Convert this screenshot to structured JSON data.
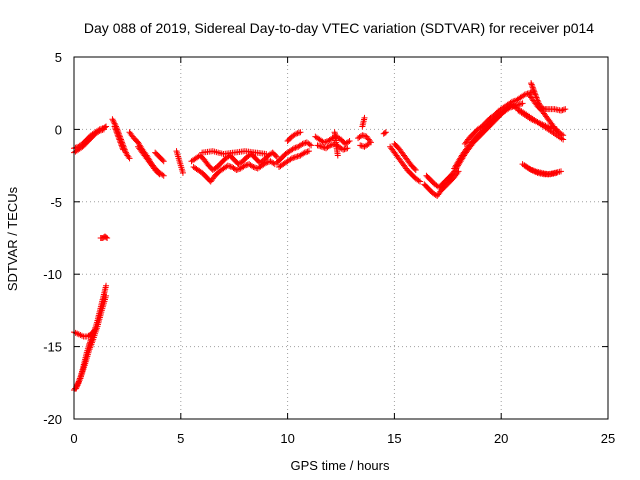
{
  "chart_data": {
    "type": "scatter",
    "title": "Day 088 of 2019, Sidereal Day-to-day VTEC variation (SDTVAR) for receiver p014",
    "xlabel": "GPS time / hours",
    "ylabel": "SDTVAR / TECUs",
    "xlim": [
      0,
      25
    ],
    "ylim": [
      -20,
      5
    ],
    "xticks": [
      "0",
      "5",
      "10",
      "15",
      "20",
      "25"
    ],
    "yticks": [
      "5",
      "0",
      "-5",
      "-10",
      "-15",
      "-20"
    ],
    "marker": "+",
    "grid": true,
    "series": [
      {
        "name": "SDTVAR",
        "color": "#ff0000",
        "segments": [
          {
            "x": [
              0.0,
              0.2,
              0.4,
              0.6,
              0.8,
              1.0,
              1.2,
              1.4,
              1.5
            ],
            "y": [
              -1.3,
              -1.2,
              -1.0,
              -0.7,
              -0.4,
              -0.2,
              0.0,
              0.1,
              0.2
            ]
          },
          {
            "x": [
              0.0,
              0.2,
              0.4,
              0.6,
              0.8,
              1.0,
              1.2,
              1.4
            ],
            "y": [
              -1.6,
              -1.4,
              -1.2,
              -0.9,
              -0.6,
              -0.3,
              -0.1,
              0.0
            ]
          },
          {
            "x": [
              0.0,
              0.1,
              0.2,
              0.3,
              0.4,
              0.5,
              0.6,
              0.7,
              0.8,
              0.9,
              1.0,
              1.1,
              1.2,
              1.3,
              1.4,
              1.5
            ],
            "y": [
              -18.0,
              -17.8,
              -17.5,
              -17.1,
              -16.6,
              -16.0,
              -15.4,
              -14.9,
              -14.5,
              -14.1,
              -13.7,
              -13.2,
              -12.6,
              -12.0,
              -11.4,
              -10.8
            ]
          },
          {
            "x": [
              0.1,
              0.3,
              0.5,
              0.7,
              0.9,
              1.1,
              1.3,
              1.5
            ],
            "y": [
              -17.9,
              -17.2,
              -16.3,
              -15.3,
              -14.5,
              -13.6,
              -12.5,
              -11.5
            ]
          },
          {
            "x": [
              0.0,
              0.15,
              0.3,
              0.45,
              0.6,
              0.75,
              0.9,
              1.0
            ],
            "y": [
              -14.0,
              -14.1,
              -14.2,
              -14.3,
              -14.3,
              -14.2,
              -14.0,
              -13.8
            ]
          },
          {
            "x": [
              1.25,
              1.35,
              1.45,
              1.55
            ],
            "y": [
              -7.5,
              -7.5,
              -7.4,
              -7.5
            ]
          },
          {
            "x": [
              1.8,
              1.9,
              2.0,
              2.1,
              2.2,
              2.3,
              2.4,
              2.5,
              2.6
            ],
            "y": [
              0.7,
              0.4,
              0.1,
              -0.3,
              -0.7,
              -1.1,
              -1.5,
              -1.8,
              -2.0
            ]
          },
          {
            "x": [
              1.9,
              2.0,
              2.1,
              2.2,
              2.3
            ],
            "y": [
              0.2,
              -0.2,
              -0.6,
              -1.0,
              -1.4
            ]
          },
          {
            "x": [
              2.6,
              2.8,
              3.0,
              3.2,
              3.4,
              3.6,
              3.8,
              4.0,
              4.2
            ],
            "y": [
              -0.2,
              -0.6,
              -0.9,
              -1.4,
              -1.8,
              -2.3,
              -2.7,
              -3.0,
              -3.2
            ]
          },
          {
            "x": [
              3.0,
              3.2,
              3.4,
              3.6,
              3.8,
              4.0
            ],
            "y": [
              -1.2,
              -1.6,
              -2.0,
              -2.4,
              -2.8,
              -3.1
            ]
          },
          {
            "x": [
              3.8,
              4.0,
              4.2
            ],
            "y": [
              -1.6,
              -1.9,
              -2.2
            ]
          },
          {
            "x": [
              4.8,
              4.9,
              5.0,
              5.1
            ],
            "y": [
              -1.5,
              -2.0,
              -2.5,
              -3.0
            ]
          },
          {
            "x": [
              5.5,
              5.7,
              5.9,
              6.1,
              6.3,
              6.5,
              6.7,
              6.9,
              7.1,
              7.3,
              7.5,
              7.7,
              7.9,
              8.1,
              8.3,
              8.5,
              8.7,
              8.9,
              9.1,
              9.3,
              9.5
            ],
            "y": [
              -2.2,
              -2.0,
              -1.8,
              -2.1,
              -2.5,
              -2.8,
              -2.6,
              -2.3,
              -2.0,
              -1.8,
              -2.1,
              -2.4,
              -2.2,
              -1.9,
              -1.7,
              -2.0,
              -2.3,
              -2.1,
              -1.8,
              -1.6,
              -1.9
            ]
          },
          {
            "x": [
              5.6,
              5.8,
              6.0,
              6.2,
              6.4,
              6.6,
              6.8,
              7.0,
              7.2,
              7.4,
              7.6,
              7.8,
              8.0,
              8.2,
              8.4,
              8.6,
              8.8,
              9.0,
              9.2,
              9.4
            ],
            "y": [
              -2.6,
              -2.8,
              -3.0,
              -3.3,
              -3.6,
              -3.2,
              -2.9,
              -2.7,
              -2.5,
              -2.6,
              -2.8,
              -2.7,
              -2.5,
              -2.4,
              -2.6,
              -2.7,
              -2.5,
              -2.3,
              -2.2,
              -2.4
            ]
          },
          {
            "x": [
              6.0,
              6.5,
              7.0,
              7.5,
              8.0,
              8.5,
              9.0
            ],
            "y": [
              -1.6,
              -1.5,
              -1.7,
              -1.6,
              -1.5,
              -1.6,
              -1.7
            ]
          },
          {
            "x": [
              9.5,
              9.7,
              9.9,
              10.1,
              10.3,
              10.5,
              10.7,
              10.9,
              11.1
            ],
            "y": [
              -2.3,
              -2.0,
              -1.7,
              -1.5,
              -1.3,
              -1.2,
              -1.0,
              -0.9,
              -1.1
            ]
          },
          {
            "x": [
              9.6,
              9.8,
              10.0,
              10.2,
              10.4,
              10.6,
              10.8,
              11.0
            ],
            "y": [
              -2.6,
              -2.4,
              -2.2,
              -2.0,
              -1.9,
              -1.8,
              -1.6,
              -1.5
            ]
          },
          {
            "x": [
              10.0,
              10.2,
              10.4,
              10.6
            ],
            "y": [
              -0.8,
              -0.5,
              -0.3,
              -0.2
            ]
          },
          {
            "x": [
              11.3,
              11.5,
              11.7,
              11.9,
              12.1,
              12.3,
              12.5,
              12.7,
              12.9
            ],
            "y": [
              -0.5,
              -0.7,
              -0.9,
              -0.8,
              -0.6,
              -0.5,
              -0.7,
              -1.0,
              -0.8
            ]
          },
          {
            "x": [
              11.4,
              11.6,
              11.8,
              12.0,
              12.2,
              12.4,
              12.6,
              12.8
            ],
            "y": [
              -1.1,
              -1.2,
              -1.3,
              -1.1,
              -1.0,
              -1.2,
              -1.4,
              -1.3
            ]
          },
          {
            "x": [
              12.2,
              12.25,
              12.3,
              12.35
            ],
            "y": [
              -0.2,
              -0.5,
              -1.3,
              -1.8
            ]
          },
          {
            "x": [
              13.3,
              13.5,
              13.7,
              13.9
            ],
            "y": [
              -0.6,
              -0.4,
              -0.5,
              -0.9
            ]
          },
          {
            "x": [
              13.4,
              13.6,
              13.8
            ],
            "y": [
              -1.1,
              -1.2,
              -1.0
            ]
          },
          {
            "x": [
              13.5,
              13.6
            ],
            "y": [
              0.2,
              0.8
            ]
          },
          {
            "x": [
              14.8,
              15.0,
              15.2,
              15.4,
              15.6,
              15.8,
              16.0,
              16.2
            ],
            "y": [
              -1.2,
              -1.6,
              -2.0,
              -2.4,
              -2.8,
              -3.1,
              -3.4,
              -3.6
            ]
          },
          {
            "x": [
              15.0,
              15.2,
              15.4,
              15.6,
              15.8,
              16.0
            ],
            "y": [
              -1.0,
              -1.3,
              -1.7,
              -2.1,
              -2.5,
              -2.8
            ]
          },
          {
            "x": [
              14.5,
              14.6
            ],
            "y": [
              -0.3,
              -0.2
            ]
          },
          {
            "x": [
              16.4,
              16.6,
              16.8,
              17.0,
              17.2,
              17.4,
              17.6,
              17.8,
              18.0
            ],
            "y": [
              -3.8,
              -4.1,
              -4.4,
              -4.6,
              -4.2,
              -3.9,
              -3.6,
              -3.3,
              -2.9
            ]
          },
          {
            "x": [
              16.5,
              16.7,
              16.9,
              17.1,
              17.3,
              17.5,
              17.7
            ],
            "y": [
              -3.2,
              -3.5,
              -3.8,
              -4.0,
              -3.7,
              -3.4,
              -3.1
            ]
          },
          {
            "x": [
              17.5,
              17.7,
              17.9,
              18.1,
              18.3,
              18.5,
              18.7,
              18.9,
              19.1,
              19.3,
              19.5,
              19.7,
              19.9,
              20.1,
              20.3,
              20.5
            ],
            "y": [
              -3.5,
              -3.1,
              -2.7,
              -2.2,
              -1.7,
              -1.3,
              -0.9,
              -0.6,
              -0.3,
              0.0,
              0.3,
              0.6,
              0.9,
              1.2,
              1.5,
              1.7
            ]
          },
          {
            "x": [
              17.8,
              18.0,
              18.2,
              18.4,
              18.6,
              18.8,
              19.0,
              19.2,
              19.4,
              19.6,
              19.8,
              20.0,
              20.2,
              20.4,
              20.6,
              20.8,
              21.0
            ],
            "y": [
              -2.7,
              -2.2,
              -1.7,
              -1.3,
              -0.9,
              -0.6,
              -0.3,
              0.0,
              0.3,
              0.6,
              0.9,
              1.1,
              1.3,
              1.5,
              1.6,
              1.7,
              1.8
            ]
          },
          {
            "x": [
              18.3,
              18.5,
              18.7,
              18.9,
              19.1,
              19.3,
              19.5,
              19.7,
              19.9,
              20.1,
              20.3,
              20.5,
              20.7,
              20.9,
              21.1,
              21.3,
              21.5
            ],
            "y": [
              -1.0,
              -0.6,
              -0.3,
              0.0,
              0.2,
              0.5,
              0.8,
              1.0,
              1.3,
              1.5,
              1.7,
              1.9,
              2.0,
              2.2,
              2.4,
              2.5,
              2.6
            ]
          },
          {
            "x": [
              20.5,
              20.8,
              21.1,
              21.4,
              21.7,
              22.0,
              22.3,
              22.6,
              22.9
            ],
            "y": [
              1.7,
              1.4,
              1.1,
              0.8,
              0.5,
              0.2,
              -0.1,
              -0.4,
              -0.7
            ]
          },
          {
            "x": [
              20.8,
              21.1,
              21.4,
              21.7,
              22.0,
              22.3,
              22.6
            ],
            "y": [
              1.3,
              1.0,
              0.7,
              0.5,
              0.3,
              0.1,
              0.0
            ]
          },
          {
            "x": [
              21.4,
              21.5,
              21.6,
              21.7,
              21.8,
              21.9,
              22.0,
              22.2,
              22.5,
              22.8,
              23.0
            ],
            "y": [
              3.2,
              2.8,
              2.4,
              2.0,
              1.7,
              1.5,
              1.4,
              1.4,
              1.4,
              1.3,
              1.4
            ]
          },
          {
            "x": [
              21.3,
              21.5,
              21.7,
              21.9,
              22.1,
              22.3,
              22.5,
              22.7,
              22.9
            ],
            "y": [
              2.4,
              2.0,
              1.6,
              1.3,
              0.9,
              0.5,
              0.1,
              -0.2,
              -0.4
            ]
          },
          {
            "x": [
              21.0,
              21.3,
              21.6,
              21.9,
              22.2,
              22.5,
              22.8
            ],
            "y": [
              -2.4,
              -2.7,
              -2.9,
              -3.0,
              -3.1,
              -3.0,
              -2.9
            ]
          },
          {
            "x": [
              21.1,
              21.4,
              21.7,
              22.0,
              22.3,
              22.6
            ],
            "y": [
              -2.5,
              -2.8,
              -3.0,
              -3.1,
              -3.1,
              -3.0
            ]
          }
        ]
      }
    ]
  }
}
